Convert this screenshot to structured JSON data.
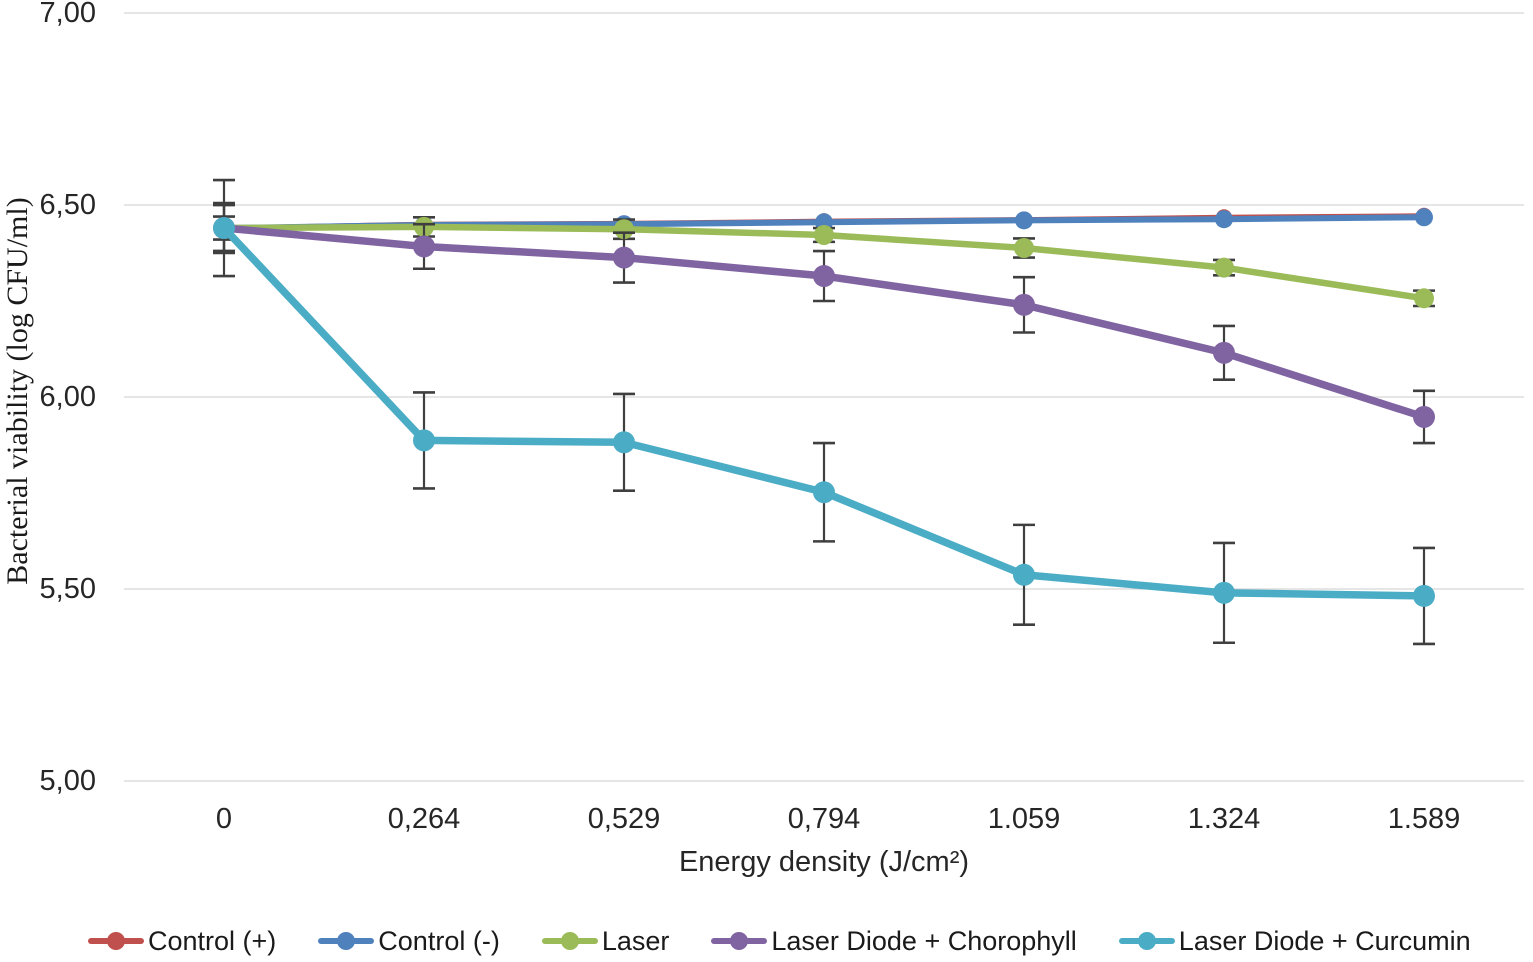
{
  "chart_data": {
    "type": "line",
    "title": "",
    "xlabel": "Energy density (J/cm²)",
    "ylabel": "Bacterial viability  (log CFU/ml)",
    "categories": [
      "0",
      "0,264",
      "0,529",
      "0,794",
      "1.059",
      "1.324",
      "1.589"
    ],
    "ylim": [
      5.0,
      7.0
    ],
    "yticks": [
      {
        "label": "7,00",
        "value": 7.0
      },
      {
        "label": "6,50",
        "value": 6.5
      },
      {
        "label": "6,00",
        "value": 6.0
      },
      {
        "label": "5,50",
        "value": 5.5
      },
      {
        "label": "5,00",
        "value": 5.0
      }
    ],
    "grid": true,
    "legend_position": "bottom",
    "error_bar_color": "#3f3f3f",
    "gridline_color": "#d6d6d6",
    "series": [
      {
        "id": "control-plus",
        "name": "Control (+)",
        "color": "#C0504D",
        "values": [
          6.44,
          6.45,
          6.452,
          6.458,
          6.462,
          6.468,
          6.472
        ],
        "errors": [
          0.06,
          0,
          0,
          0,
          0,
          0,
          0
        ]
      },
      {
        "id": "control-minus",
        "name": "Control (-)",
        "color": "#4F81BD",
        "values": [
          6.44,
          6.448,
          6.45,
          6.455,
          6.46,
          6.463,
          6.468
        ],
        "errors": [
          0.06,
          0,
          0,
          0,
          0,
          0,
          0
        ]
      },
      {
        "id": "laser",
        "name": "Laser",
        "color": "#9BBB59",
        "values": [
          6.44,
          6.443,
          6.437,
          6.422,
          6.388,
          6.337,
          6.257
        ],
        "errors": [
          0.03,
          0.025,
          0.025,
          0.018,
          0.025,
          0.02,
          0.02
        ]
      },
      {
        "id": "laser-diode-chorophyll",
        "name": "Laser Diode + Chorophyll",
        "color": "#8064A2",
        "values": [
          6.44,
          6.392,
          6.363,
          6.315,
          6.24,
          6.115,
          5.948
        ],
        "errors": [
          0.065,
          0.058,
          0.065,
          0.065,
          0.072,
          0.07,
          0.068
        ]
      },
      {
        "id": "laser-diode-curcumin",
        "name": "Laser Diode + Curcumin",
        "color": "#4BACC6",
        "values": [
          6.44,
          5.887,
          5.882,
          5.752,
          5.537,
          5.49,
          5.482
        ],
        "errors": [
          0.125,
          0.125,
          0.126,
          0.128,
          0.13,
          0.13,
          0.125
        ]
      }
    ]
  }
}
